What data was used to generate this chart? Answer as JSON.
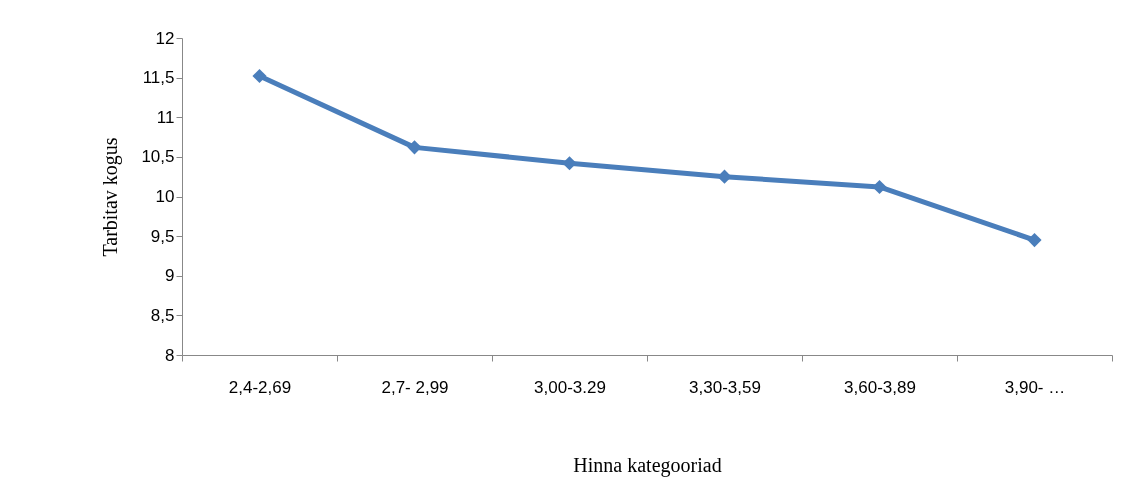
{
  "chart_data": {
    "type": "line",
    "xlabel": "Hinna kategooriad",
    "ylabel": "Tarbitav kogus",
    "categories": [
      "2,4-2,69",
      "2,7- 2,99",
      "3,00-3.29",
      "3,30-3,59",
      "3,60-3,89",
      "3,90- …"
    ],
    "series": [
      {
        "color": "#4a7ebb",
        "values": [
          11.52,
          10.62,
          10.42,
          10.25,
          10.12,
          9.45
        ]
      }
    ],
    "ylim": [
      8,
      12
    ],
    "yticks": [
      8,
      {
        "value": 8.5,
        "label": "8,5"
      },
      9,
      {
        "value": 9.5,
        "label": "9,5"
      },
      10,
      {
        "value": 10.5,
        "label": "10,5"
      },
      11,
      {
        "value": 11.5,
        "label": "11,5"
      },
      12
    ],
    "grid": false,
    "marker": "diamond",
    "line_style": "solid"
  }
}
